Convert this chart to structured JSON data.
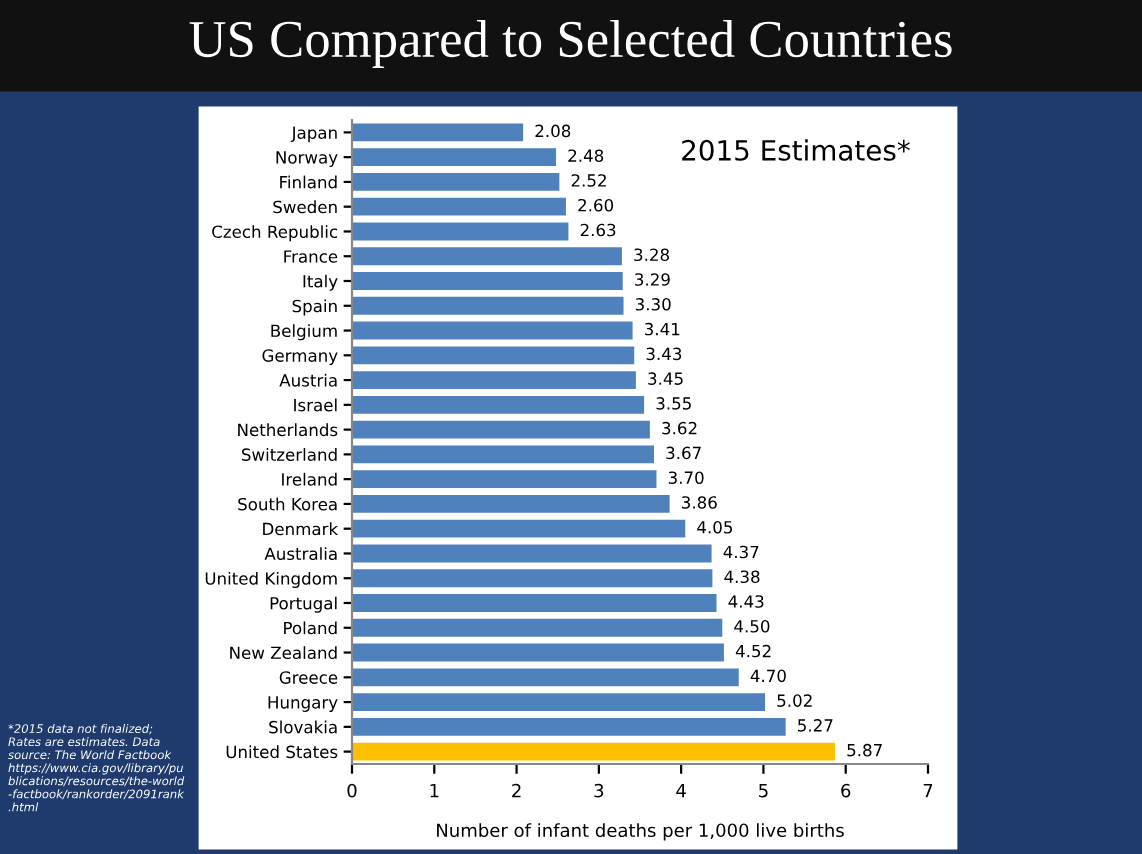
{
  "chart_data": {
    "type": "bar",
    "orientation": "horizontal",
    "title": "US Compared to Selected Countries",
    "subtitle": "2015 Estimates*",
    "xlabel": "Number of infant deaths per 1,000 live births",
    "categories": [
      "Japan",
      "Norway",
      "Finland",
      "Sweden",
      "Czech Republic",
      "France",
      "Italy",
      "Spain",
      "Belgium",
      "Germany",
      "Austria",
      "Israel",
      "Netherlands",
      "Switzerland",
      "Ireland",
      "South Korea",
      "Denmark",
      "Australia",
      "United Kingdom",
      "Portugal",
      "Poland",
      "New Zealand",
      "Greece",
      "Hungary",
      "Slovakia",
      "United States"
    ],
    "values": [
      2.08,
      2.48,
      2.52,
      2.6,
      2.63,
      3.28,
      3.29,
      3.3,
      3.41,
      3.43,
      3.45,
      3.55,
      3.62,
      3.67,
      3.7,
      3.86,
      4.05,
      4.37,
      4.38,
      4.43,
      4.5,
      4.52,
      4.7,
      5.02,
      5.27,
      5.87
    ],
    "value_labels": [
      "2.08",
      "2.48",
      "2.52",
      "2.60",
      "2.63",
      "3.28",
      "3.29",
      "3.30",
      "3.41",
      "3.43",
      "3.45",
      "3.55",
      "3.62",
      "3.67",
      "3.70",
      "3.86",
      "4.05",
      "4.37",
      "4.38",
      "4.43",
      "4.50",
      "4.52",
      "4.70",
      "5.02",
      "5.27",
      "5.87"
    ],
    "colors": [
      "#4f81bd",
      "#4f81bd",
      "#4f81bd",
      "#4f81bd",
      "#4f81bd",
      "#4f81bd",
      "#4f81bd",
      "#4f81bd",
      "#4f81bd",
      "#4f81bd",
      "#4f81bd",
      "#4f81bd",
      "#4f81bd",
      "#4f81bd",
      "#4f81bd",
      "#4f81bd",
      "#4f81bd",
      "#4f81bd",
      "#4f81bd",
      "#4f81bd",
      "#4f81bd",
      "#4f81bd",
      "#4f81bd",
      "#4f81bd",
      "#4f81bd",
      "#ffc000"
    ],
    "xlim": [
      0,
      7
    ],
    "xticks": [
      0,
      1,
      2,
      3,
      4,
      5,
      6,
      7
    ],
    "grid": false,
    "legend": false,
    "annotations": [
      "*2015 data not finalized; Rates are estimates. Data source: The World Factbook https://www.cia.gov/library/publications/resources/the-world-factbook/rankorder/2091rank.html"
    ]
  }
}
